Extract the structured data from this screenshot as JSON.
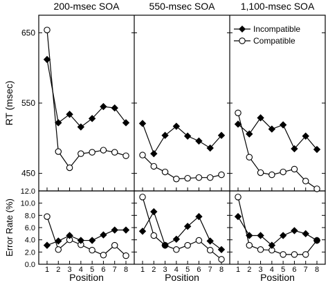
{
  "chart_data": {
    "type": "line",
    "panel_titles": [
      "200-msec SOA",
      "550-msec SOA",
      "1,100-msec SOA"
    ],
    "x": [
      1,
      2,
      3,
      4,
      5,
      6,
      7,
      8
    ],
    "xlabel": "Position",
    "rt": {
      "ylabel": "RT (msec)",
      "ylim": [
        425,
        675
      ],
      "ticks": [
        "450",
        "550",
        "650"
      ],
      "tick_values": [
        450,
        550,
        650
      ],
      "series": [
        {
          "name": "Incompatible",
          "marker": "filled-diamond",
          "panels": [
            [
              612,
              522,
              534,
              516,
              528,
              545,
              543,
              522
            ],
            [
              521,
              478,
              504,
              517,
              503,
              496,
              486,
              504
            ],
            [
              520,
              506,
              529,
              513,
              519,
              485,
              503,
              484
            ]
          ]
        },
        {
          "name": "Compatible",
          "marker": "open-circle",
          "panels": [
            [
              654,
              481,
              458,
              478,
              480,
              483,
              480,
              475
            ],
            [
              476,
              460,
              452,
              442,
              443,
              444,
              444,
              448
            ],
            [
              536,
              473,
              451,
              448,
              452,
              456,
              439,
              428
            ]
          ]
        }
      ]
    },
    "error": {
      "ylabel": "Error Rate (%)",
      "ylim": [
        0,
        12
      ],
      "ticks": [
        "0.0",
        "2.0",
        "4.0",
        "6.0",
        "8.0",
        "10.0",
        "12.0"
      ],
      "tick_values": [
        0,
        2,
        4,
        6,
        8,
        10,
        12
      ],
      "series": [
        {
          "name": "Incompatible",
          "panels": [
            [
              3.1,
              3.8,
              4.7,
              3.9,
              3.9,
              4.8,
              5.6,
              5.6
            ],
            [
              5.4,
              8.6,
              3.1,
              4.1,
              6.2,
              7.8,
              3.8,
              2.4
            ],
            [
              7.8,
              4.7,
              4.7,
              3.1,
              4.7,
              5.5,
              5.0,
              3.9
            ]
          ]
        },
        {
          "name": "Compatible",
          "panels": [
            [
              7.8,
              2.4,
              4.0,
              3.2,
              2.3,
              1.5,
              3.1,
              1.4
            ],
            [
              11.0,
              4.7,
              3.1,
              2.4,
              3.1,
              3.9,
              2.3,
              0.8
            ],
            [
              11.0,
              3.1,
              2.4,
              2.3,
              1.6,
              1.6,
              1.6,
              3.9
            ]
          ]
        }
      ]
    },
    "legend": {
      "position": "top-right of third panel",
      "entries": [
        "Incompatible",
        "Compatible"
      ]
    }
  }
}
